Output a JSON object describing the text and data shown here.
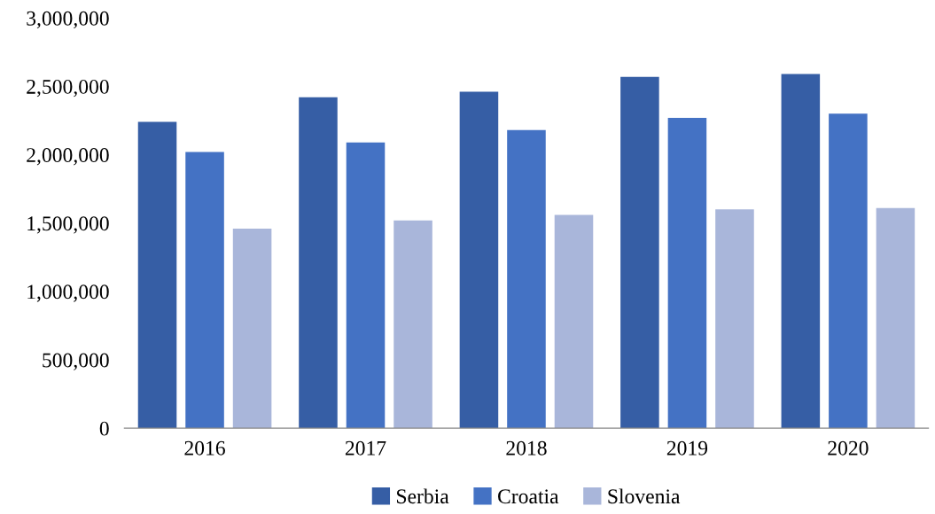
{
  "chart_data": {
    "type": "bar",
    "categories": [
      "2016",
      "2017",
      "2018",
      "2019",
      "2020"
    ],
    "series": [
      {
        "name": "Serbia",
        "color": "#365ea5",
        "values": [
          2240000,
          2420000,
          2460000,
          2570000,
          2590000
        ]
      },
      {
        "name": "Croatia",
        "color": "#4472c4",
        "values": [
          2020000,
          2090000,
          2180000,
          2270000,
          2300000
        ]
      },
      {
        "name": "Slovenia",
        "color": "#a9b6da",
        "values": [
          1460000,
          1520000,
          1560000,
          1600000,
          1610000
        ]
      }
    ],
    "ylim": [
      0,
      3000000
    ],
    "yticks": [
      {
        "value": 0,
        "label": "0"
      },
      {
        "value": 500000,
        "label": "500,000"
      },
      {
        "value": 1000000,
        "label": "1,000,000"
      },
      {
        "value": 1500000,
        "label": "1,500,000"
      },
      {
        "value": 2000000,
        "label": "2,000,000"
      },
      {
        "value": 2500000,
        "label": "2,500,000"
      },
      {
        "value": 3000000,
        "label": "3,000,000"
      }
    ],
    "grid": false,
    "legend": "bottom"
  }
}
